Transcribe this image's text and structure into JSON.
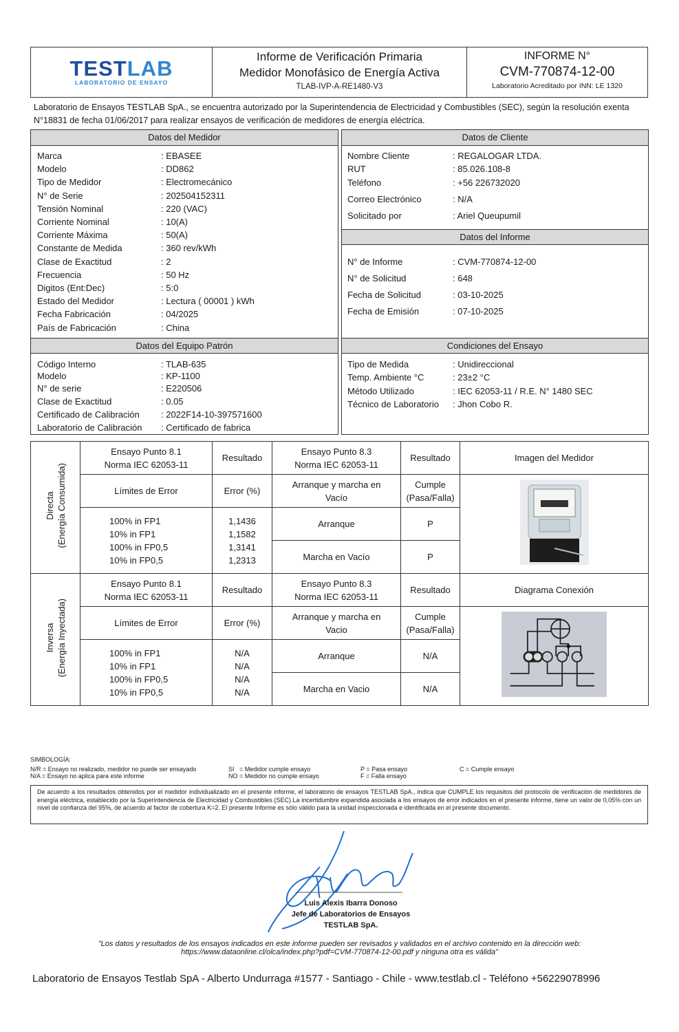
{
  "header": {
    "logo_top_a": "TEST",
    "logo_top_b": "LAB",
    "logo_sub": "LABORATORIO DE ENSAYO",
    "title_1": "Informe de Verificación Primaria",
    "title_2": "Medidor Monofásico de Energía Activa",
    "code": "TLAB-IVP-A-RE1480-V3",
    "informe_label": "INFORME N°",
    "informe_number": "CVM-770874-12-00",
    "accreditation": "Laboratorio Acreditado por INN: LE 1320"
  },
  "intro": "Laboratorio de Ensayos TESTLAB SpA., se encuentra autorizado por la Superintendencia de Electricidad y Combustibles (SEC), según la resolución exenta N°18831 de fecha 01/06/2017 para realizar ensayos de verificación de medidores de energía eléctrica.",
  "medidor": {
    "title": "Datos del Medidor",
    "rows": [
      [
        "Marca",
        ": EBASEE"
      ],
      [
        "Modelo",
        ": DD862"
      ],
      [
        "Tipo de Medidor",
        ": Electromecánico"
      ],
      [
        "N° de Serie",
        ": 202504152311"
      ],
      [
        "Tensión Nominal",
        ": 220 (VAC)"
      ],
      [
        "Corriente Nominal",
        ": 10(A)"
      ],
      [
        "Corriente Máxima",
        ": 50(A)"
      ],
      [
        "Constante de Medida",
        ": 360 rev/kWh"
      ],
      [
        "Clase de Exactitud",
        ": 2"
      ],
      [
        "Frecuencia",
        ": 50 Hz"
      ],
      [
        "Digitos (Ent:Dec)",
        ": 5:0"
      ],
      [
        "Estado del Medidor",
        ": Lectura ( 00001 ) kWh"
      ],
      [
        "Fecha Fabricación",
        ": 04/2025"
      ],
      [
        "País de Fabricación",
        ": China"
      ]
    ]
  },
  "patron": {
    "title": "Datos del Equipo Patrón",
    "rows": [
      [
        "Código Interno",
        ": TLAB-635"
      ],
      [
        "Modelo",
        ": KP-1100"
      ],
      [
        "N° de serie",
        ": E220506"
      ],
      [
        "Clase de Exactitud",
        ": 0.05"
      ],
      [
        "Certificado de Calibración",
        ": 2022F14-10-397571600"
      ],
      [
        "Laboratorio de Calibración",
        ": Certificado de fabrica"
      ]
    ]
  },
  "cliente": {
    "title": "Datos de Cliente",
    "rows": [
      [
        "Nombre Cliente",
        ": REGALOGAR LTDA."
      ],
      [
        "RUT",
        ": 85.026.108-8"
      ],
      [
        "Teléfono",
        ": +56 226732020"
      ],
      [
        "Correo Electrónico",
        ": N/A"
      ],
      [
        "Solicitado por",
        ": Ariel Queupumil"
      ]
    ]
  },
  "informe": {
    "title": "Datos del Informe",
    "rows": [
      [
        "N° de Informe",
        ": CVM-770874-12-00"
      ],
      [
        "N° de Solicitud",
        ": 648"
      ],
      [
        "Fecha de Solicitud",
        ": 03-10-2025"
      ],
      [
        "Fecha de Emisión",
        ": 07-10-2025"
      ]
    ]
  },
  "condiciones": {
    "title": "Condiciones del Ensayo",
    "rows": [
      [
        "Tipo de Medida",
        ": Unidireccional"
      ],
      [
        "Temp. Ambiente °C",
        ": 23±2 °C"
      ],
      [
        "Método Utilizado",
        ": IEC 62053-11 / R.E. N° 1480 SEC"
      ],
      [
        "Técnico de Laboratorio",
        ": Jhon Cobo R."
      ]
    ]
  },
  "tests": {
    "directa": {
      "side_1": "Directa",
      "side_2": "(Energía Consumida)",
      "h81_1": "Ensayo Punto 8.1",
      "h81_2": "Norma IEC 62053-11",
      "res": "Resultado",
      "h83_1": "Ensayo Punto 8.3",
      "h83_2": "Norma IEC 62053-11",
      "res2": "Resultado",
      "img_title": "Imagen del Medidor",
      "lim": "Límites de Error",
      "err": "Error (%)",
      "am_1": "Arranque y marcha en",
      "am_2": "Vacío",
      "cum_1": "Cumple",
      "cum_2": "(Pasa/Falla)",
      "limits": [
        "100% in FP1",
        "10% in FP1",
        "100% in FP0,5",
        "10% in FP0,5"
      ],
      "errors": [
        "1,1436",
        "1,1582",
        "1,3141",
        "1,2313"
      ],
      "arranque": "Arranque",
      "arranque_res": "P",
      "marcha": "Marcha en Vacío",
      "marcha_res": "P"
    },
    "inversa": {
      "side_1": "Inversa",
      "side_2": "(Energía Inyectada)",
      "h81_1": "Ensayo Punto 8.1",
      "h81_2": "Norma IEC 62053-11",
      "res": "Resultado",
      "h83_1": "Ensayo Punto 8.3",
      "h83_2": "Norma IEC 62053-11",
      "res2": "Resultado",
      "img_title": "Diagrama Conexión",
      "lim": "Límites de Error",
      "err": "Error (%)",
      "am_1": "Arranque y marcha en",
      "am_2": "Vacio",
      "cum_1": "Cumple",
      "cum_2": "(Pasa/Falla)",
      "limits": [
        "100% in FP1",
        "10% in FP1",
        "100% in FP0,5",
        "10% in FP0,5"
      ],
      "errors": [
        "N/A",
        "N/A",
        "N/A",
        "N/A"
      ],
      "arranque": "Arranque",
      "arranque_res": "N/A",
      "marcha": "Marcha en Vacio",
      "marcha_res": "N/A"
    }
  },
  "simbologia": {
    "title": "SIMBOLOGÍA:",
    "items": [
      "N/R = Ensayo no realizado, medidor no puede ser ensayado",
      "N/A = Ensayo no aplica para este informe",
      "SI   = Medidor cumple ensayo",
      "NO = Medidor no cumple ensayo",
      "P = Pasa ensayo",
      "F = Falla ensayo",
      "C = Cumple ensayo"
    ]
  },
  "disclaimer": "De acuerdo a los resultados obtenidos por el medidor individualizado en el presente informe, el laboratorio de ensayos TESTLAB SpA., indica que CUMPLE los requisitos del protocolo de verificación de medidores de energía eléctrica, establecido por la Superintendencia de Electricidad y Combustibles (SEC).La incertidumbre expandida asociada a los ensayos de error indicados en el presente informe, tiene un valor de 0,05% con un nivel de confianza del 95%, de acuerdo al factor de cobertura K=2.  El presente Informe es sólo válido para la unidad inspeccionada e identificada en el presente documento.",
  "signature": {
    "name": "Luis Alexis Ibarra Donoso",
    "role": "Jefe de Laboratorios de Ensayos",
    "company": "TESTLAB SpA."
  },
  "quote_1": "\"Los datos y resultados de los ensayos indicados en este informe pueden ser revisados y validados en el archivo contenido en la dirección web:",
  "quote_2": "https://www.dataonline.cl/olca/index.php?pdf=CVM-770874-12-00.pdf y ninguna otra es válida\"",
  "footer": "Laboratorio de Ensayos Testlab SpA - Alberto Undurraga #1577 - Santiago - Chile - www.testlab.cl - Teléfono +56229078996",
  "colors": {
    "logo_dark": "#1d4f9a",
    "logo_light": "#2e86d1",
    "section_header": "#d9d9d9",
    "signature_ink": "#1f6fd0"
  }
}
